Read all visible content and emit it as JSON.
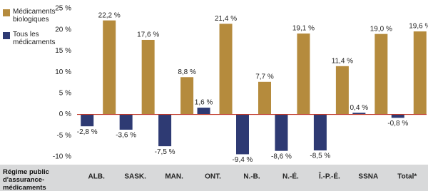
{
  "chart_data": {
    "type": "bar",
    "x_label": "Régime public d'assurance-médicaments",
    "categories": [
      "ALB.",
      "SASK.",
      "MAN.",
      "ONT.",
      "N.-B.",
      "N.-É.",
      "Î.-P.-É.",
      "SSNA",
      "Total*"
    ],
    "series": [
      {
        "name": "Médicaments biologiques",
        "color": "#b58b3d",
        "values": [
          22.2,
          17.6,
          8.8,
          21.4,
          7.7,
          19.1,
          11.4,
          19.0,
          19.6
        ],
        "value_labels": [
          "22,2 %",
          "17,6 %",
          "8,8 %",
          "21,4 %",
          "7,7 %",
          "19,1 %",
          "11,4 %",
          "19,0 %",
          "19,6 %"
        ]
      },
      {
        "name": "Tous les médicaments",
        "color": "#2e3a73",
        "values": [
          -2.8,
          -3.6,
          -7.5,
          1.6,
          -9.4,
          -8.6,
          -8.5,
          0.4,
          -0.8
        ],
        "value_labels": [
          "-2,8 %",
          "-3,6 %",
          "-7,5 %",
          "1,6 %",
          "-9,4 %",
          "-8,6 %",
          "-8,5 %",
          "0,4 %",
          "-0,8 %"
        ]
      }
    ],
    "ylim": [
      -10,
      25
    ],
    "yticks": [
      {
        "value": 25,
        "label": "25 %"
      },
      {
        "value": 20,
        "label": "20 %"
      },
      {
        "value": 15,
        "label": "15 %"
      },
      {
        "value": 10,
        "label": "10 %"
      },
      {
        "value": 5,
        "label": "5 %"
      },
      {
        "value": 0,
        "label": "0 %"
      },
      {
        "value": -5,
        "label": "-5 %"
      },
      {
        "value": -10,
        "label": "-10 %"
      }
    ],
    "grid": false,
    "legend": "top-left"
  }
}
